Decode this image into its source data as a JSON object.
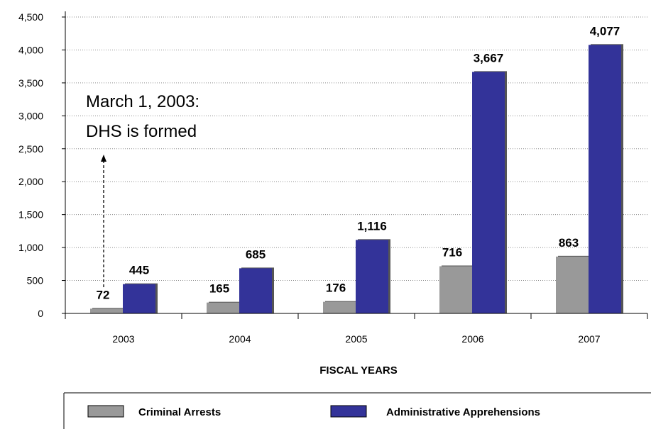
{
  "chart_data": {
    "type": "bar",
    "categories": [
      "2003",
      "2004",
      "2005",
      "2006",
      "2007"
    ],
    "series": [
      {
        "name": "Criminal Arrests",
        "values": [
          72,
          165,
          176,
          716,
          863
        ],
        "color": "#999999",
        "labels": [
          "72",
          "165",
          "176",
          "716",
          "863"
        ]
      },
      {
        "name": "Administrative Apprehensions",
        "values": [
          445,
          685,
          1116,
          3667,
          4077
        ],
        "color": "#333399",
        "labels": [
          "445",
          "685",
          "1,116",
          "3,667",
          "4,077"
        ]
      }
    ],
    "xlabel": "FISCAL YEARS",
    "ylabel": "",
    "ylim": [
      0,
      4500
    ],
    "yticks": [
      0,
      500,
      1000,
      1500,
      2000,
      2500,
      3000,
      3500,
      4000,
      4500
    ],
    "ytick_labels": [
      "0",
      "500",
      "1,000",
      "1,500",
      "2,000",
      "2,500",
      "3,000",
      "3,500",
      "4,000",
      "4,500"
    ],
    "grid": true,
    "legend_position": "bottom",
    "annotation": {
      "lines": [
        "March 1, 2003:",
        "DHS is formed"
      ],
      "arrow": "dashed-up"
    }
  }
}
